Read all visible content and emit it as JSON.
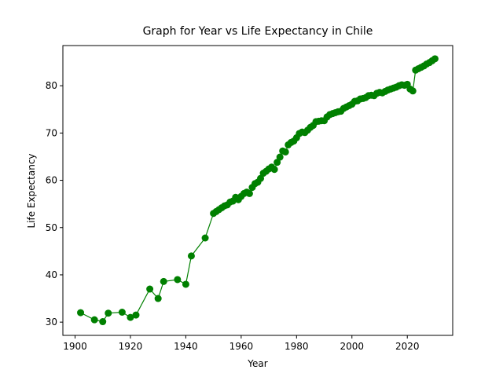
{
  "chart_data": {
    "type": "line",
    "title": "Graph for Year vs Life Expectancy in Chile",
    "x_label": "Year",
    "y_label": "Life Expectancy",
    "x": [
      1902,
      1907,
      1910,
      1912,
      1917,
      1920,
      1922,
      1927,
      1930,
      1932,
      1937,
      1940,
      1942,
      1947,
      1950,
      1951,
      1952,
      1953,
      1954,
      1955,
      1956,
      1957,
      1958,
      1959,
      1960,
      1961,
      1962,
      1963,
      1964,
      1965,
      1966,
      1967,
      1968,
      1969,
      1970,
      1971,
      1972,
      1973,
      1974,
      1975,
      1976,
      1977,
      1978,
      1979,
      1980,
      1981,
      1982,
      1983,
      1984,
      1985,
      1986,
      1987,
      1988,
      1989,
      1990,
      1991,
      1992,
      1993,
      1994,
      1995,
      1996,
      1997,
      1998,
      1999,
      2000,
      2001,
      2002,
      2003,
      2004,
      2005,
      2006,
      2007,
      2008,
      2009,
      2010,
      2011,
      2012,
      2013,
      2014,
      2015,
      2016,
      2017,
      2018,
      2019,
      2020,
      2021,
      2022,
      2023,
      2024,
      2025,
      2026,
      2027,
      2028,
      2029,
      2030
    ],
    "series": [
      {
        "name": "Life Expectancy",
        "color": "#008000",
        "values": [
          32.0,
          30.5,
          30.1,
          31.9,
          32.1,
          31.0,
          31.5,
          37.0,
          35.0,
          38.6,
          39.0,
          38.0,
          44.0,
          47.8,
          53.0,
          53.4,
          53.8,
          54.2,
          54.6,
          54.8,
          55.4,
          55.6,
          56.4,
          55.9,
          56.6,
          57.2,
          57.5,
          57.2,
          58.5,
          59.3,
          59.6,
          60.4,
          61.5,
          61.9,
          62.4,
          62.8,
          62.3,
          63.8,
          64.9,
          66.2,
          66.0,
          67.5,
          68.0,
          68.3,
          69.0,
          69.9,
          70.2,
          70.1,
          70.6,
          71.2,
          71.6,
          72.4,
          72.5,
          72.6,
          72.6,
          73.4,
          73.9,
          74.1,
          74.3,
          74.5,
          74.6,
          75.2,
          75.5,
          75.8,
          76.1,
          76.7,
          76.8,
          77.2,
          77.3,
          77.5,
          77.9,
          78.0,
          77.9,
          78.4,
          78.6,
          78.5,
          78.8,
          79.1,
          79.3,
          79.5,
          79.7,
          80.0,
          80.2,
          80.1,
          80.3,
          79.3,
          78.9,
          83.3,
          83.6,
          83.9,
          84.2,
          84.6,
          84.9,
          85.3,
          85.7
        ]
      }
    ],
    "xlim": [
      1895.6,
      2036.4
    ],
    "ylim": [
      27.2,
      88.5
    ],
    "xticks": [
      1900,
      1920,
      1940,
      1960,
      1980,
      2000,
      2020
    ],
    "yticks": [
      30,
      40,
      50,
      60,
      70,
      80
    ],
    "grid": false
  }
}
